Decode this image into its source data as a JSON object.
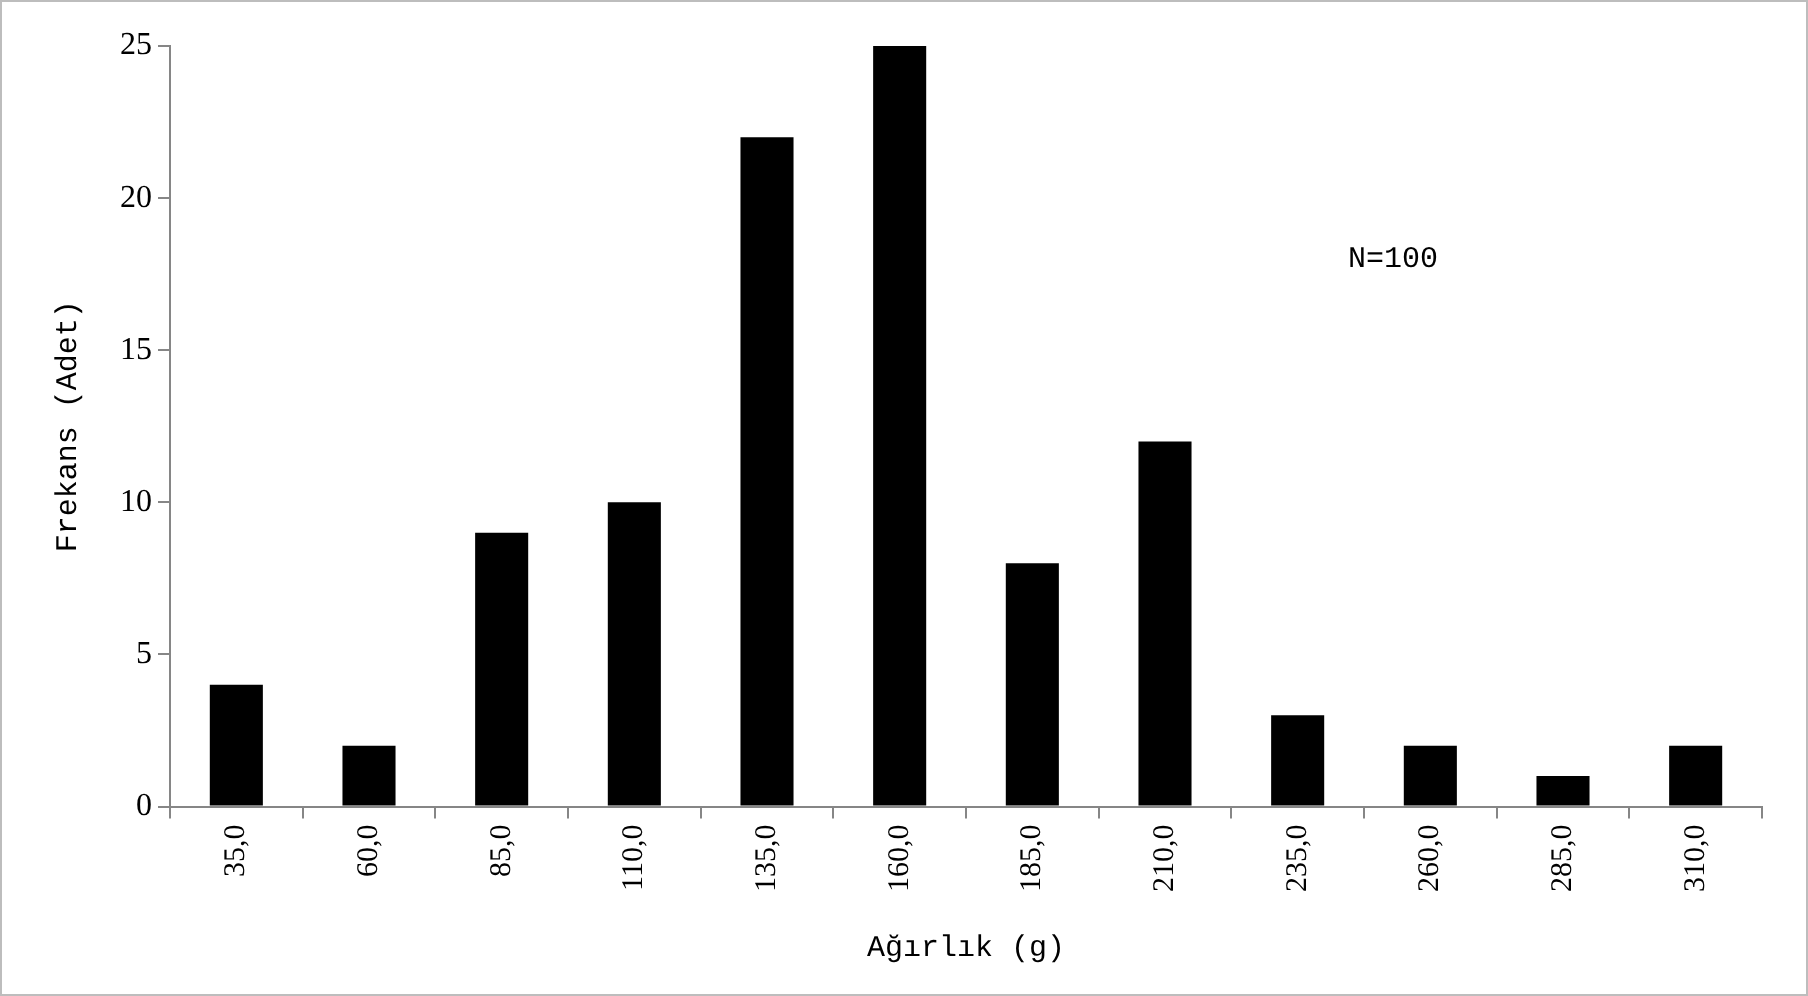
{
  "chart_data": {
    "type": "bar",
    "xlabel": "Ağırlık (g)",
    "ylabel": "Frekans (Adet)",
    "categories": [
      "35,0",
      "60,0",
      "85,0",
      "110,0",
      "135,0",
      "160,0",
      "185,0",
      "210,0",
      "235,0",
      "260,0",
      "285,0",
      "310,0"
    ],
    "values": [
      4,
      2,
      9,
      10,
      22,
      25,
      8,
      12,
      3,
      2,
      1,
      2
    ],
    "color": "#000000",
    "ylim": [
      0,
      25
    ],
    "yticks": [
      0,
      5,
      10,
      15,
      20,
      25
    ],
    "grid": false,
    "legend": false,
    "annotations": [
      "N=100"
    ]
  }
}
